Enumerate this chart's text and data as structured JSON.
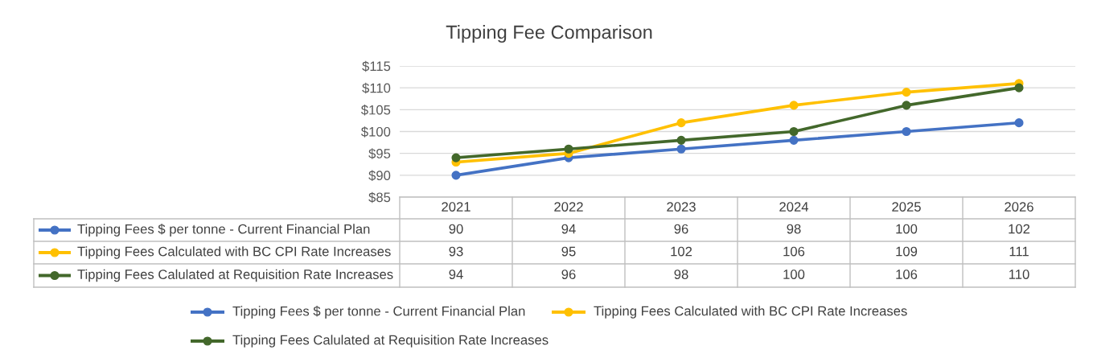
{
  "chart_data": {
    "type": "line",
    "title": "Tipping Fee Comparison",
    "categories": [
      "2021",
      "2022",
      "2023",
      "2024",
      "2025",
      "2026"
    ],
    "series": [
      {
        "name": "Tipping Fees $ per tonne - Current Financial Plan",
        "color": "#4472c4",
        "values": [
          90,
          94,
          96,
          98,
          100,
          102
        ]
      },
      {
        "name": "Tipping Fees Calculated with BC CPI Rate Increases",
        "color": "#ffc000",
        "values": [
          93,
          95,
          102,
          106,
          109,
          111
        ]
      },
      {
        "name": "Tipping Fees Calulated at Requisition Rate Increases",
        "color": "#43682b",
        "values": [
          94,
          96,
          98,
          100,
          106,
          110
        ]
      }
    ],
    "ylim": [
      85,
      115
    ],
    "yticks": [
      {
        "value": 85,
        "label": "$85"
      },
      {
        "value": 90,
        "label": "$90"
      },
      {
        "value": 95,
        "label": "$95"
      },
      {
        "value": 100,
        "label": "$100"
      },
      {
        "value": 105,
        "label": "$105"
      },
      {
        "value": 110,
        "label": "$110"
      },
      {
        "value": 115,
        "label": "$115"
      }
    ],
    "grid": "y",
    "legend": "bottom",
    "marker": "circle",
    "line_style": "solid",
    "data_labels": true
  }
}
